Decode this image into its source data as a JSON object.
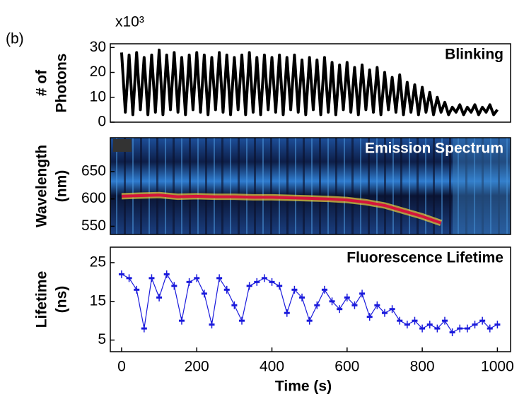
{
  "chart_data": [
    {
      "type": "line",
      "panel_label": "(b)",
      "y_scale_label": "x10³",
      "title": "Blinking",
      "ylabel": [
        "# of",
        "Photons"
      ],
      "color": "#000000",
      "xlim": [
        -30,
        1035
      ],
      "ylim": [
        0,
        31.5
      ],
      "yticks": [
        0,
        10,
        20,
        30
      ],
      "x": [
        0,
        10,
        20,
        30,
        40,
        50,
        60,
        70,
        80,
        90,
        100,
        110,
        120,
        130,
        140,
        150,
        160,
        170,
        180,
        190,
        200,
        210,
        220,
        230,
        240,
        250,
        260,
        270,
        280,
        290,
        300,
        310,
        320,
        330,
        340,
        350,
        360,
        370,
        380,
        390,
        400,
        410,
        420,
        430,
        440,
        450,
        460,
        470,
        480,
        490,
        500,
        510,
        520,
        530,
        540,
        550,
        560,
        570,
        580,
        590,
        600,
        610,
        620,
        630,
        640,
        650,
        660,
        670,
        680,
        690,
        700,
        710,
        720,
        730,
        740,
        750,
        760,
        770,
        780,
        790,
        800,
        810,
        820,
        830,
        840,
        850,
        860,
        870,
        880,
        890,
        900,
        910,
        920,
        930,
        940,
        950,
        960,
        970,
        980,
        990,
        1000
      ],
      "values": [
        28,
        4,
        27,
        3,
        28,
        5,
        26,
        3,
        27,
        4,
        29,
        3,
        27,
        5,
        28,
        4,
        26,
        3,
        27,
        5,
        28,
        4,
        27,
        3,
        26,
        5,
        28,
        4,
        27,
        3,
        26,
        5,
        27,
        3,
        28,
        4,
        26,
        3,
        27,
        5,
        26,
        4,
        27,
        3,
        26,
        5,
        27,
        4,
        25,
        3,
        26,
        5,
        25,
        3,
        26,
        4,
        24,
        3,
        23,
        5,
        24,
        4,
        22,
        3,
        23,
        5,
        21,
        4,
        22,
        3,
        20,
        5,
        18,
        4,
        19,
        3,
        16,
        4,
        15,
        3,
        14,
        4,
        12,
        3,
        10,
        4,
        8,
        3,
        6,
        4,
        7,
        3,
        6,
        4,
        7,
        3,
        6,
        4,
        7,
        3,
        5
      ]
    },
    {
      "type": "line",
      "title": "Emission Spectrum",
      "ylabel": [
        "Wavelength",
        "(nm)"
      ],
      "color": "#d4143c",
      "xlim": [
        -30,
        1035
      ],
      "ylim": [
        535,
        712
      ],
      "yticks": [
        550,
        600,
        650
      ],
      "x": [
        0,
        50,
        100,
        150,
        200,
        250,
        300,
        350,
        400,
        450,
        500,
        550,
        600,
        650,
        700,
        750,
        800,
        850
      ],
      "values": [
        605,
        606,
        607,
        604,
        605,
        604,
        604,
        603,
        603,
        602,
        601,
        600,
        598,
        594,
        588,
        578,
        568,
        556
      ]
    },
    {
      "type": "errorbar",
      "title": "Fluorescence Lifetime",
      "ylabel": [
        "Lifetime",
        "(ns)"
      ],
      "color": "#1a1adc",
      "xlabel": "Time (s)",
      "xlim": [
        -30,
        1035
      ],
      "xticks": [
        0,
        200,
        400,
        600,
        800,
        1000
      ],
      "ylim": [
        2,
        29
      ],
      "yticks": [
        5,
        15,
        25
      ],
      "x": [
        0,
        20,
        40,
        60,
        80,
        100,
        120,
        140,
        160,
        180,
        200,
        220,
        240,
        260,
        280,
        300,
        320,
        340,
        360,
        380,
        400,
        420,
        440,
        460,
        480,
        500,
        520,
        540,
        560,
        580,
        600,
        620,
        640,
        660,
        680,
        700,
        720,
        740,
        760,
        780,
        800,
        820,
        840,
        860,
        880,
        900,
        920,
        940,
        960,
        980,
        1000
      ],
      "values": [
        22,
        21,
        18,
        8,
        21,
        16,
        22,
        19,
        10,
        20,
        21,
        17,
        9,
        21,
        18,
        14,
        10,
        19,
        20,
        21,
        20,
        19,
        12,
        18,
        16,
        10,
        14,
        18,
        15,
        13,
        16,
        14,
        17,
        11,
        14,
        12,
        13,
        10,
        9,
        10,
        8,
        9,
        8,
        10,
        7,
        8,
        8,
        9,
        10,
        8,
        9
      ],
      "errors": [
        1,
        1,
        1,
        1,
        1,
        1,
        1,
        1,
        1,
        1,
        1,
        1,
        1,
        1,
        1,
        1,
        1,
        1,
        1,
        1,
        1,
        1,
        1,
        1,
        1,
        1,
        1,
        1,
        1,
        1,
        1,
        1,
        1,
        1,
        1,
        1,
        1,
        1,
        1,
        1,
        1,
        1,
        1,
        1,
        1,
        1,
        1,
        1,
        1,
        1,
        1
      ]
    }
  ]
}
